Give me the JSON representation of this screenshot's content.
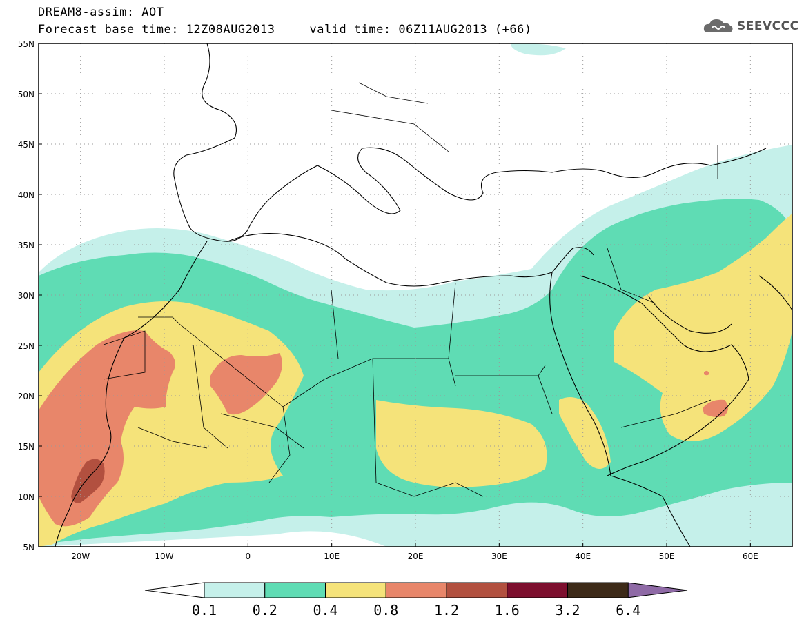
{
  "header": {
    "title": "DREAM8-assim: AOT",
    "base_time": "Forecast base time: 12Z08AUG2013",
    "valid_time": "valid time: 06Z11AUG2013 (+66)"
  },
  "logo": {
    "text": "SEEVCCC",
    "icon": "cloud-icon"
  },
  "map": {
    "lon_range": [
      -25,
      65
    ],
    "lat_range": [
      5,
      55
    ],
    "lat_labels": [
      "55N",
      "50N",
      "45N",
      "40N",
      "35N",
      "30N",
      "25N",
      "20N",
      "15N",
      "10N",
      "5N"
    ],
    "lon_labels": [
      "20W",
      "10W",
      "0",
      "10E",
      "20E",
      "30E",
      "40E",
      "50E",
      "60E"
    ],
    "gridlines": "dotted"
  },
  "legend": {
    "thresholds": [
      "0.1",
      "0.2",
      "0.4",
      "0.8",
      "1.2",
      "1.6",
      "3.2",
      "6.4"
    ],
    "colors": [
      "#c5f0ea",
      "#5fdcb4",
      "#f5e37a",
      "#e8866a",
      "#b2503f",
      "#7d0f2e",
      "#3d2a18",
      "#8f6aa6"
    ]
  }
}
